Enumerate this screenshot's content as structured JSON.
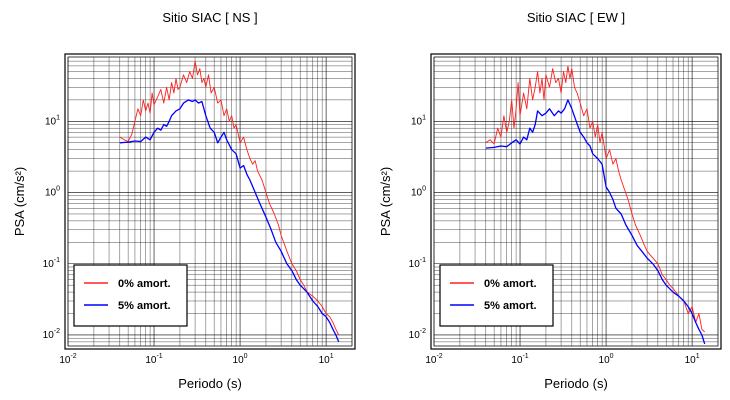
{
  "chart_data": [
    {
      "type": "line",
      "title": "Sitio SIAC [ NS ]",
      "xlabel": "Periodo (s)",
      "ylabel": "PSA (cm/s²)",
      "xscale": "log",
      "yscale": "log",
      "xlim": [
        0.01,
        20
      ],
      "ylim": [
        0.007,
        80
      ],
      "grid": true,
      "legend_position": "bottom-left",
      "x_ticks": [
        {
          "base": "10",
          "exp": "-2"
        },
        {
          "base": "10",
          "exp": "-1"
        },
        {
          "base": "10",
          "exp": "0"
        },
        {
          "base": "10",
          "exp": "1"
        }
      ],
      "y_ticks": [
        {
          "base": "10",
          "exp": "-2"
        },
        {
          "base": "10",
          "exp": "-1"
        },
        {
          "base": "10",
          "exp": "0"
        },
        {
          "base": "10",
          "exp": "1"
        }
      ],
      "series": [
        {
          "name": "0% amort.",
          "color": "#ff2020",
          "x": [
            0.04,
            0.045,
            0.05,
            0.055,
            0.06,
            0.065,
            0.07,
            0.075,
            0.08,
            0.085,
            0.09,
            0.095,
            0.1,
            0.11,
            0.12,
            0.13,
            0.14,
            0.15,
            0.16,
            0.17,
            0.18,
            0.19,
            0.2,
            0.22,
            0.24,
            0.26,
            0.28,
            0.3,
            0.32,
            0.34,
            0.36,
            0.38,
            0.4,
            0.43,
            0.46,
            0.5,
            0.55,
            0.6,
            0.65,
            0.7,
            0.75,
            0.8,
            0.85,
            0.9,
            1.0,
            1.1,
            1.2,
            1.3,
            1.4,
            1.5,
            1.6,
            1.8,
            2.0,
            2.2,
            2.5,
            2.8,
            3.0,
            3.5,
            4.0,
            4.5,
            5.0,
            5.5,
            6.0,
            7.0,
            8.0,
            9.0,
            10.0,
            11.0,
            12.0,
            13.0,
            14.0
          ],
          "y": [
            6.0,
            5.5,
            5.2,
            6.5,
            10.0,
            15.0,
            12.0,
            20.0,
            14.0,
            18.0,
            13.0,
            25.0,
            17.0,
            22.0,
            28.0,
            18.0,
            30.0,
            20.0,
            35.0,
            25.0,
            40.0,
            28.0,
            30.0,
            45.0,
            35.0,
            50.0,
            40.0,
            70.0,
            45.0,
            55.0,
            35.0,
            40.0,
            30.0,
            45.0,
            25.0,
            30.0,
            18.0,
            20.0,
            12.0,
            15.0,
            10.0,
            12.0,
            8.0,
            9.0,
            5.0,
            6.0,
            4.0,
            3.0,
            2.5,
            2.8,
            2.0,
            1.5,
            1.0,
            0.7,
            0.5,
            0.35,
            0.25,
            0.15,
            0.1,
            0.08,
            0.06,
            0.05,
            0.04,
            0.035,
            0.03,
            0.025,
            0.02,
            0.018,
            0.015,
            0.012,
            0.01
          ]
        },
        {
          "name": "5% amort.",
          "color": "#0000ff",
          "x": [
            0.04,
            0.05,
            0.06,
            0.07,
            0.08,
            0.09,
            0.1,
            0.11,
            0.12,
            0.13,
            0.14,
            0.15,
            0.16,
            0.18,
            0.2,
            0.22,
            0.25,
            0.28,
            0.3,
            0.33,
            0.36,
            0.4,
            0.45,
            0.5,
            0.55,
            0.6,
            0.65,
            0.7,
            0.8,
            0.9,
            1.0,
            1.1,
            1.2,
            1.3,
            1.5,
            1.7,
            2.0,
            2.3,
            2.6,
            3.0,
            3.5,
            4.0,
            4.5,
            5.0,
            6.0,
            7.0,
            8.0,
            9.0,
            10.0,
            11.0,
            12.0,
            13.0,
            14.0
          ],
          "y": [
            5.0,
            5.1,
            5.3,
            5.2,
            6.0,
            5.5,
            7.0,
            8.0,
            7.5,
            9.0,
            8.5,
            10.0,
            12.0,
            14.0,
            15.0,
            18.0,
            20.0,
            19.0,
            20.0,
            18.0,
            19.0,
            12.0,
            8.0,
            7.0,
            5.0,
            6.0,
            7.0,
            5.5,
            4.0,
            3.5,
            2.2,
            2.4,
            1.8,
            1.5,
            1.0,
            0.7,
            0.45,
            0.3,
            0.2,
            0.15,
            0.1,
            0.08,
            0.06,
            0.05,
            0.04,
            0.03,
            0.025,
            0.02,
            0.018,
            0.015,
            0.012,
            0.01,
            0.008
          ]
        }
      ]
    },
    {
      "type": "line",
      "title": "Sitio SIAC [ EW ]",
      "xlabel": "Periodo (s)",
      "ylabel": "PSA (cm/s²)",
      "xscale": "log",
      "yscale": "log",
      "xlim": [
        0.01,
        20
      ],
      "ylim": [
        0.007,
        80
      ],
      "grid": true,
      "legend_position": "bottom-left",
      "x_ticks": [
        {
          "base": "10",
          "exp": "-2"
        },
        {
          "base": "10",
          "exp": "-1"
        },
        {
          "base": "10",
          "exp": "0"
        },
        {
          "base": "10",
          "exp": "1"
        }
      ],
      "y_ticks": [
        {
          "base": "10",
          "exp": "-2"
        },
        {
          "base": "10",
          "exp": "-1"
        },
        {
          "base": "10",
          "exp": "0"
        },
        {
          "base": "10",
          "exp": "1"
        }
      ],
      "series": [
        {
          "name": "0% amort.",
          "color": "#ff2020",
          "x": [
            0.04,
            0.045,
            0.05,
            0.055,
            0.06,
            0.065,
            0.07,
            0.075,
            0.08,
            0.085,
            0.09,
            0.095,
            0.1,
            0.11,
            0.12,
            0.13,
            0.14,
            0.15,
            0.16,
            0.17,
            0.18,
            0.19,
            0.2,
            0.22,
            0.24,
            0.26,
            0.28,
            0.3,
            0.32,
            0.34,
            0.36,
            0.38,
            0.4,
            0.43,
            0.46,
            0.5,
            0.55,
            0.6,
            0.65,
            0.7,
            0.75,
            0.8,
            0.85,
            0.9,
            1.0,
            1.1,
            1.2,
            1.3,
            1.4,
            1.5,
            1.6,
            1.8,
            2.0,
            2.2,
            2.5,
            2.8,
            3.0,
            3.5,
            4.0,
            4.5,
            5.0,
            5.5,
            6.0,
            7.0,
            8.0,
            9.0,
            10.0,
            11.0,
            12.0,
            13.0,
            14.0
          ],
          "y": [
            5.0,
            5.5,
            4.8,
            8.0,
            6.0,
            12.0,
            7.0,
            10.0,
            20.0,
            8.0,
            15.0,
            35.0,
            12.0,
            25.0,
            15.0,
            40.0,
            20.0,
            30.0,
            50.0,
            25.0,
            40.0,
            20.0,
            45.0,
            30.0,
            55.0,
            35.0,
            40.0,
            25.0,
            50.0,
            35.0,
            60.0,
            40.0,
            55.0,
            30.0,
            25.0,
            18.0,
            12.0,
            15.0,
            8.0,
            10.0,
            6.0,
            9.0,
            5.0,
            7.0,
            3.0,
            4.0,
            2.5,
            3.0,
            2.0,
            1.5,
            1.2,
            0.8,
            0.5,
            0.35,
            0.25,
            0.18,
            0.15,
            0.12,
            0.1,
            0.07,
            0.06,
            0.05,
            0.045,
            0.035,
            0.03,
            0.02,
            0.025,
            0.015,
            0.02,
            0.012,
            0.011
          ]
        },
        {
          "name": "5% amort.",
          "color": "#0000ff",
          "x": [
            0.04,
            0.05,
            0.06,
            0.07,
            0.08,
            0.09,
            0.1,
            0.11,
            0.12,
            0.13,
            0.14,
            0.15,
            0.16,
            0.18,
            0.2,
            0.22,
            0.25,
            0.28,
            0.3,
            0.33,
            0.36,
            0.4,
            0.45,
            0.5,
            0.55,
            0.6,
            0.65,
            0.7,
            0.8,
            0.9,
            1.0,
            1.1,
            1.2,
            1.3,
            1.5,
            1.7,
            2.0,
            2.3,
            2.6,
            3.0,
            3.5,
            4.0,
            4.5,
            5.0,
            6.0,
            7.0,
            8.0,
            9.0,
            10.0,
            11.0,
            12.0,
            13.0,
            14.0
          ],
          "y": [
            4.2,
            4.3,
            4.5,
            4.4,
            5.0,
            5.5,
            4.8,
            6.0,
            5.5,
            8.0,
            7.0,
            9.0,
            14.0,
            12.0,
            13.0,
            15.0,
            12.0,
            14.0,
            13.0,
            15.0,
            20.0,
            15.0,
            10.0,
            7.0,
            6.0,
            5.0,
            4.5,
            3.5,
            3.0,
            2.5,
            1.2,
            1.0,
            0.8,
            0.6,
            0.5,
            0.35,
            0.25,
            0.18,
            0.15,
            0.12,
            0.1,
            0.08,
            0.06,
            0.05,
            0.04,
            0.035,
            0.03,
            0.025,
            0.02,
            0.015,
            0.012,
            0.01,
            0.0075
          ]
        }
      ]
    }
  ]
}
